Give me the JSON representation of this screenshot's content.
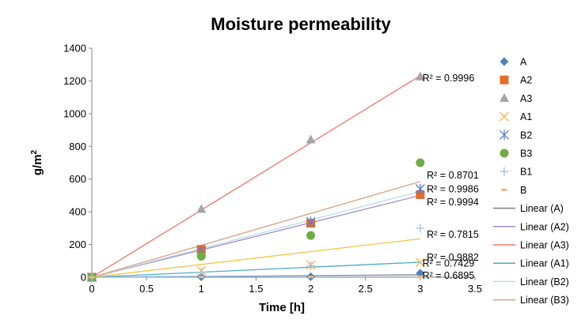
{
  "chart_data": {
    "type": "scatter",
    "title": "Moisture permeability",
    "xlabel": "Time [h]",
    "ylabel": "g/m",
    "ylabel_sup": "2",
    "xlim": [
      0,
      3.5
    ],
    "ylim": [
      0,
      1400
    ],
    "x_ticks": [
      "0",
      "0.5",
      "1",
      "1.5",
      "2",
      "2.5",
      "3",
      "3.5"
    ],
    "y_ticks": [
      "0",
      "200",
      "400",
      "600",
      "800",
      "1000",
      "1200",
      "1400"
    ],
    "grid": false,
    "legend_position": "right",
    "series": [
      {
        "name": "A",
        "marker": "diamond",
        "color": "#4F81BD",
        "x": [
          0,
          1,
          2,
          3
        ],
        "y": [
          0,
          2,
          3,
          25
        ]
      },
      {
        "name": "A2",
        "marker": "square",
        "color": "#E46C28",
        "x": [
          0,
          1,
          2,
          3
        ],
        "y": [
          0,
          170,
          330,
          505
        ]
      },
      {
        "name": "A3",
        "marker": "triangle",
        "color": "#A5A5A5",
        "x": [
          0,
          1,
          2,
          3
        ],
        "y": [
          0,
          415,
          840,
          1225
        ]
      },
      {
        "name": "A1",
        "marker": "x",
        "color": "#F7B955",
        "x": [
          0,
          1,
          2,
          3
        ],
        "y": [
          0,
          40,
          75,
          90
        ]
      },
      {
        "name": "B2",
        "marker": "asterisk",
        "color": "#5B7FD6",
        "x": [
          0,
          1,
          2,
          3
        ],
        "y": [
          0,
          160,
          340,
          540
        ]
      },
      {
        "name": "B3",
        "marker": "circle",
        "color": "#70AD47",
        "x": [
          0,
          1,
          2,
          3
        ],
        "y": [
          0,
          128,
          255,
          700
        ]
      },
      {
        "name": "B1",
        "marker": "plus",
        "color": "#9DC3E6",
        "x": [
          0,
          1,
          2,
          3
        ],
        "y": [
          0,
          30,
          70,
          300
        ]
      },
      {
        "name": "B",
        "marker": "dash",
        "color": "#F4B183",
        "x": [
          0,
          1,
          2,
          3
        ],
        "y": [
          0,
          1,
          2,
          3
        ]
      }
    ],
    "trendlines": [
      {
        "name": "Linear (A)",
        "color": "#7F7F7F",
        "from": [
          0,
          0
        ],
        "to": [
          3,
          15
        ]
      },
      {
        "name": "Linear (A2)",
        "color": "#A38BD1",
        "from": [
          0,
          0
        ],
        "to": [
          3,
          500
        ]
      },
      {
        "name": "Linear (A3)",
        "color": "#F0736B",
        "from": [
          0,
          0
        ],
        "to": [
          3,
          1232
        ]
      },
      {
        "name": "Linear (A1)",
        "color": "#4BACC6",
        "from": [
          0,
          0
        ],
        "to": [
          3,
          92
        ]
      },
      {
        "name": "Linear (B2)",
        "color": "#B7DEE8",
        "from": [
          0,
          0
        ],
        "to": [
          3,
          525
        ]
      },
      {
        "name": "Linear (B3)",
        "color": "#D9A07F",
        "from": [
          0,
          0
        ],
        "to": [
          3,
          585
        ]
      },
      {
        "name": "",
        "color": "#F5C542",
        "from": [
          0,
          0
        ],
        "to": [
          3,
          235
        ]
      },
      {
        "name": "",
        "color": "#8DB4E2",
        "from": [
          0,
          0
        ],
        "to": [
          3,
          12
        ]
      }
    ],
    "r2_annotations": [
      {
        "text": "R² = 0.9996",
        "x": 3.02,
        "y": 1220
      },
      {
        "text": "R² = 0.8701",
        "x": 3.06,
        "y": 625
      },
      {
        "text": "R² = 0.9986",
        "x": 3.06,
        "y": 540
      },
      {
        "text": "R² = 0.9994",
        "x": 3.06,
        "y": 462
      },
      {
        "text": "R² = 0.7815",
        "x": 3.06,
        "y": 262
      },
      {
        "text": "R² = 0.9882",
        "x": 3.06,
        "y": 123
      },
      {
        "text": "R² = 0.7429",
        "x": 3.02,
        "y": 88
      },
      {
        "text": "R² = 0.6895",
        "x": 3.02,
        "y": 12
      }
    ]
  }
}
